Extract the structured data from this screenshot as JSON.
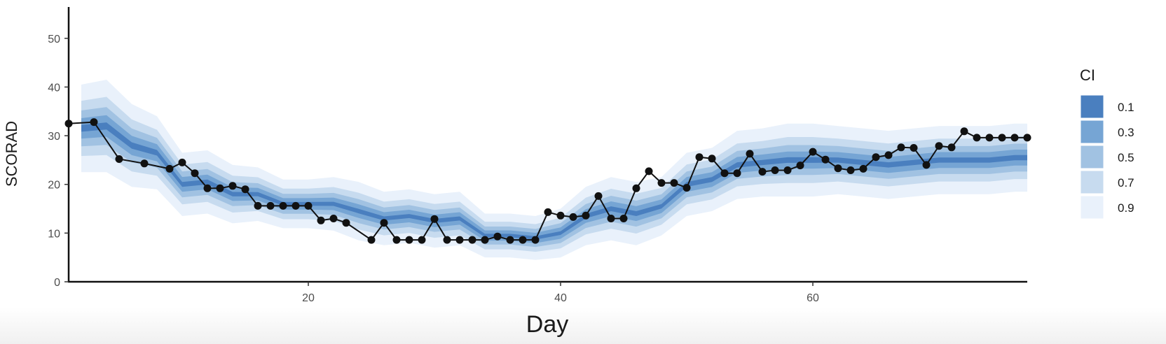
{
  "chart_data": {
    "type": "area",
    "xlabel": "Day",
    "ylabel": "SCORAD",
    "xlim": [
      1,
      77
    ],
    "ylim": [
      0,
      55
    ],
    "x_ticks": [
      20,
      40,
      60
    ],
    "y_ticks": [
      0,
      10,
      20,
      30,
      40,
      50
    ],
    "grid": false,
    "legend": {
      "title": "CI",
      "placement": "right",
      "entries": [
        "0.1",
        "0.3",
        "0.5",
        "0.7",
        "0.9"
      ],
      "colors": [
        "#4a7fbf",
        "#76a5d4",
        "#a1c2e2",
        "#c7dbef",
        "#e9f1fb"
      ]
    },
    "bands": {
      "x": [
        2,
        4,
        6,
        8,
        10,
        12,
        14,
        16,
        18,
        20,
        22,
        24,
        26,
        28,
        30,
        32,
        34,
        36,
        38,
        40,
        42,
        44,
        46,
        48,
        50,
        52,
        54,
        56,
        58,
        60,
        62,
        64,
        66,
        68,
        70,
        72,
        74,
        76,
        77
      ],
      "median": [
        31.5,
        32,
        28,
        26.5,
        20,
        20.5,
        18,
        18,
        16,
        16,
        16,
        14.5,
        13,
        13.5,
        12.5,
        13,
        9.5,
        9.5,
        9,
        10,
        13.5,
        15,
        14,
        15.5,
        20,
        21,
        24,
        24.5,
        25,
        25,
        25,
        24.5,
        24,
        24.5,
        25,
        25,
        25,
        25.5,
        25.5
      ],
      "halfwidth_0_9": [
        9,
        9.5,
        8.5,
        7.5,
        6.5,
        6.5,
        6,
        5.5,
        5,
        5,
        5.5,
        6,
        5.5,
        5.5,
        5.5,
        5.5,
        4.5,
        4.5,
        4.5,
        5,
        6,
        6.5,
        6.5,
        6,
        6.5,
        6.5,
        7,
        7,
        7.5,
        7.5,
        7,
        7,
        7,
        7,
        7,
        7,
        7,
        7,
        7
      ]
    },
    "series": [
      {
        "type": "line",
        "x": [
          1,
          3,
          5,
          7,
          9,
          10,
          11,
          12,
          13,
          14,
          15,
          16,
          17,
          18,
          19,
          20,
          21,
          22,
          23,
          25,
          26,
          27,
          28,
          29,
          30,
          31,
          32,
          33,
          34,
          35,
          36,
          37,
          38,
          39,
          40,
          41,
          42,
          43,
          44,
          45,
          46,
          47,
          48,
          49,
          50,
          51,
          52,
          53,
          54,
          55,
          56,
          57,
          58,
          59,
          60,
          61,
          62,
          63,
          64,
          65,
          66,
          67,
          68,
          69,
          70,
          71,
          72,
          73,
          74,
          75,
          76,
          77
        ],
        "y": [
          32.5,
          32.8,
          25.2,
          24.3,
          23.2,
          24.5,
          22.3,
          19.2,
          19.2,
          19.7,
          19,
          15.6,
          15.6,
          15.6,
          15.6,
          15.6,
          12.6,
          13,
          12.1,
          8.6,
          12.1,
          8.6,
          8.6,
          8.6,
          12.9,
          8.6,
          8.6,
          8.6,
          8.6,
          9.3,
          8.6,
          8.6,
          8.6,
          14.3,
          13.6,
          13.3,
          13.6,
          17.6,
          13,
          13,
          19.2,
          22.7,
          20.3,
          20.3,
          19.3,
          25.6,
          25.3,
          22.3,
          22.3,
          26.3,
          22.6,
          22.9,
          22.9,
          23.9,
          26.7,
          25.1,
          23.3,
          22.9,
          23.2,
          25.6,
          26,
          27.6,
          27.5,
          24,
          27.9,
          27.6,
          30.9,
          29.6,
          29.6,
          29.6,
          29.6,
          29.6
        ]
      }
    ]
  }
}
